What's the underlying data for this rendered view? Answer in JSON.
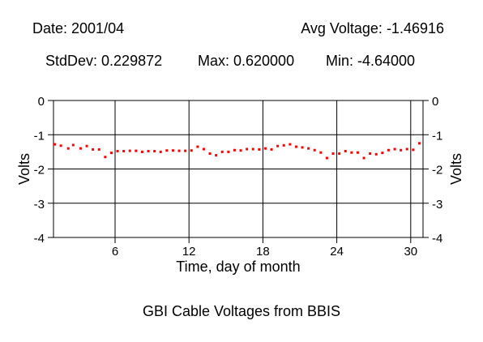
{
  "header": {
    "date": "Date: 2001/04",
    "avg_voltage": "Avg Voltage: -1.46916",
    "stddev": "StdDev: 0.229872",
    "max": "Max: 0.620000",
    "min": "Min: -4.64000"
  },
  "chart_data": {
    "type": "scatter",
    "title": "GBI Cable Voltages from BBIS",
    "xlabel": "Time, day of month",
    "ylabel": "Volts",
    "xlim": [
      1,
      31
    ],
    "ylim": [
      -4,
      0
    ],
    "x_ticks": [
      6,
      12,
      18,
      24,
      30
    ],
    "y_ticks": [
      0,
      -1,
      -2,
      -3,
      -4
    ],
    "grid": true,
    "right_axis_mirror": true,
    "marker_color": "#ff0000",
    "series": [
      {
        "x": [
          1.1,
          1.6,
          2.2,
          2.6,
          3.2,
          3.7,
          4.2,
          4.7,
          5.2,
          5.7,
          6.2,
          6.7,
          7.2,
          7.7,
          8.2,
          8.7,
          9.2,
          9.7,
          10.2,
          10.7,
          11.2,
          11.7,
          12.2,
          12.7,
          13.2,
          13.7,
          14.2,
          14.7,
          15.2,
          15.7,
          16.2,
          16.7,
          17.2,
          17.7,
          18.2,
          18.7,
          19.2,
          19.7,
          20.2,
          20.7,
          21.2,
          21.7,
          22.2,
          22.7,
          23.2,
          23.7,
          24.2,
          24.7,
          25.2,
          25.7,
          26.2,
          26.7,
          27.2,
          27.7,
          28.2,
          28.7,
          29.2,
          29.7,
          30.2,
          30.7
        ],
        "y": [
          -1.28,
          -1.32,
          -1.4,
          -1.3,
          -1.4,
          -1.33,
          -1.43,
          -1.43,
          -1.65,
          -1.53,
          -1.48,
          -1.48,
          -1.47,
          -1.47,
          -1.5,
          -1.48,
          -1.48,
          -1.5,
          -1.46,
          -1.46,
          -1.47,
          -1.47,
          -1.46,
          -1.35,
          -1.42,
          -1.55,
          -1.6,
          -1.5,
          -1.5,
          -1.45,
          -1.46,
          -1.42,
          -1.42,
          -1.43,
          -1.4,
          -1.43,
          -1.33,
          -1.31,
          -1.28,
          -1.35,
          -1.37,
          -1.4,
          -1.45,
          -1.52,
          -1.68,
          -1.55,
          -1.55,
          -1.48,
          -1.52,
          -1.52,
          -1.68,
          -1.55,
          -1.57,
          -1.53,
          -1.45,
          -1.42,
          -1.45,
          -1.42,
          -1.44,
          -1.25
        ]
      }
    ]
  }
}
